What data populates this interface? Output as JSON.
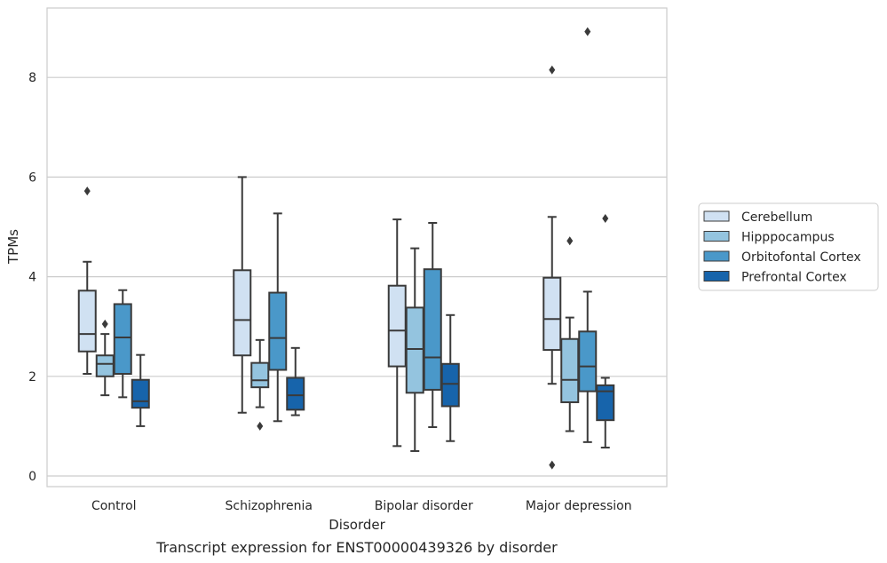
{
  "chart_data": {
    "type": "box",
    "caption": "Transcript expression for ENST00000439326 by disorder",
    "xlabel": "Disorder",
    "ylabel": "TPMs",
    "ylim": [
      -0.2,
      9.5
    ],
    "yticks": [
      0,
      2,
      4,
      6,
      8
    ],
    "grid": "horizontal",
    "legend_position": "right",
    "categories": [
      "Control",
      "Schizophrenia",
      "Bipolar disorder",
      "Major depression"
    ],
    "series": [
      {
        "name": "Cerebellum",
        "color": "#d0e1f2",
        "boxes": [
          {
            "whislo": 2.05,
            "q1": 2.5,
            "med": 2.85,
            "q3": 3.72,
            "whishi": 4.3,
            "fliers": [
              5.72
            ]
          },
          {
            "whislo": 1.27,
            "q1": 2.42,
            "med": 3.13,
            "q3": 4.13,
            "whishi": 6.0,
            "fliers": []
          },
          {
            "whislo": 0.6,
            "q1": 2.2,
            "med": 2.92,
            "q3": 3.82,
            "whishi": 5.15,
            "fliers": []
          },
          {
            "whislo": 1.85,
            "q1": 2.53,
            "med": 3.15,
            "q3": 3.98,
            "whishi": 5.2,
            "fliers": [
              8.15,
              0.22
            ]
          }
        ]
      },
      {
        "name": "Hipppocampus",
        "color": "#94c4df",
        "boxes": [
          {
            "whislo": 1.62,
            "q1": 2.0,
            "med": 2.25,
            "q3": 2.42,
            "whishi": 2.85,
            "fliers": [
              3.05
            ]
          },
          {
            "whislo": 1.38,
            "q1": 1.78,
            "med": 1.92,
            "q3": 2.27,
            "whishi": 2.73,
            "fliers": [
              1.0
            ]
          },
          {
            "whislo": 0.5,
            "q1": 1.67,
            "med": 2.55,
            "q3": 3.38,
            "whishi": 4.57,
            "fliers": []
          },
          {
            "whislo": 0.9,
            "q1": 1.48,
            "med": 1.93,
            "q3": 2.75,
            "whishi": 3.18,
            "fliers": [
              4.72
            ]
          }
        ]
      },
      {
        "name": "Orbitofontal Cortex",
        "color": "#4a98c9",
        "boxes": [
          {
            "whislo": 1.58,
            "q1": 2.05,
            "med": 2.78,
            "q3": 3.45,
            "whishi": 3.73,
            "fliers": []
          },
          {
            "whislo": 1.1,
            "q1": 2.13,
            "med": 2.77,
            "q3": 3.68,
            "whishi": 5.27,
            "fliers": []
          },
          {
            "whislo": 0.98,
            "q1": 1.73,
            "med": 2.38,
            "q3": 4.15,
            "whishi": 5.08,
            "fliers": []
          },
          {
            "whislo": 0.68,
            "q1": 1.7,
            "med": 2.2,
            "q3": 2.9,
            "whishi": 3.7,
            "fliers": [
              8.92
            ]
          }
        ]
      },
      {
        "name": "Prefrontal Cortex",
        "color": "#1764ab",
        "boxes": [
          {
            "whislo": 1.0,
            "q1": 1.37,
            "med": 1.5,
            "q3": 1.93,
            "whishi": 2.43,
            "fliers": []
          },
          {
            "whislo": 1.22,
            "q1": 1.33,
            "med": 1.62,
            "q3": 1.97,
            "whishi": 2.57,
            "fliers": []
          },
          {
            "whislo": 0.7,
            "q1": 1.4,
            "med": 1.85,
            "q3": 2.25,
            "whishi": 3.23,
            "fliers": []
          },
          {
            "whislo": 0.57,
            "q1": 1.12,
            "med": 1.7,
            "q3": 1.82,
            "whishi": 1.97,
            "fliers": [
              5.17
            ]
          }
        ]
      }
    ]
  }
}
